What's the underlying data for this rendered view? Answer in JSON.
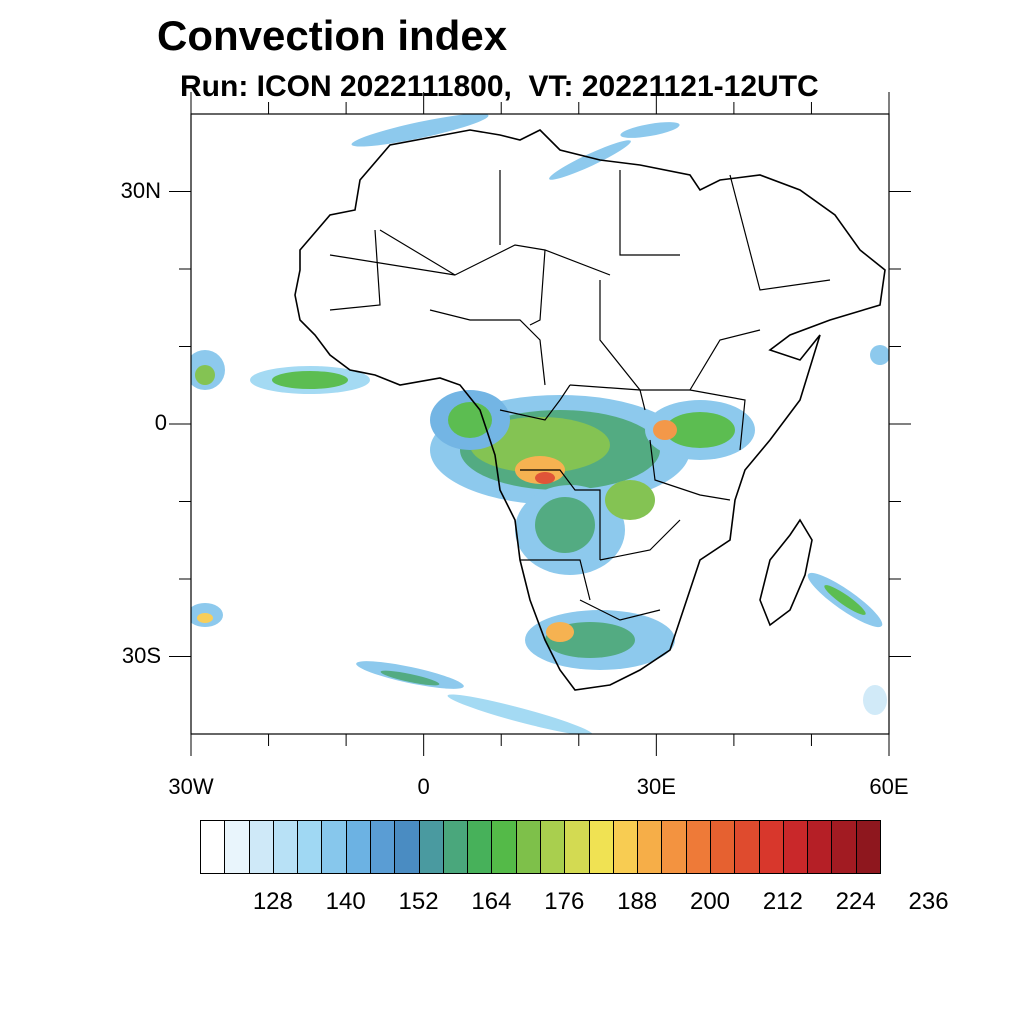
{
  "title": "Convection index",
  "subtitle": "Run: ICON 2022111800,  VT: 20221121-12UTC",
  "map": {
    "lon_range": [
      -30,
      60
    ],
    "lat_range": [
      -40,
      40
    ],
    "lat_ticks": [
      {
        "lat": 30,
        "label": "30N"
      },
      {
        "lat": 0,
        "label": "0"
      },
      {
        "lat": -30,
        "label": "30S"
      }
    ],
    "lon_ticks": [
      {
        "lon": -30,
        "label": "30W"
      },
      {
        "lon": 0,
        "label": "0"
      },
      {
        "lon": 30,
        "label": "30E"
      },
      {
        "lon": 60,
        "label": "60E"
      }
    ],
    "land_fill": "#ffffff",
    "border_color": "#000000"
  },
  "colorbar": {
    "colors": [
      "#ffffff",
      "#e9f5fc",
      "#cfe9f8",
      "#b8e1f6",
      "#a0d8f3",
      "#87c7ec",
      "#6cb2e3",
      "#5a9dd4",
      "#4a8cc2",
      "#4a9aa0",
      "#4aa77c",
      "#47b15a",
      "#54ba48",
      "#7ec04a",
      "#a9cf4e",
      "#d3da52",
      "#f0e253",
      "#f8cc52",
      "#f6ae48",
      "#f39340",
      "#ee7a38",
      "#e66130",
      "#df4b2e",
      "#d8372c",
      "#c9282a",
      "#b51f26",
      "#a21b22",
      "#8e171e"
    ],
    "labels": [
      "128",
      "140",
      "152",
      "164",
      "176",
      "188",
      "200",
      "212",
      "224",
      "236"
    ]
  }
}
